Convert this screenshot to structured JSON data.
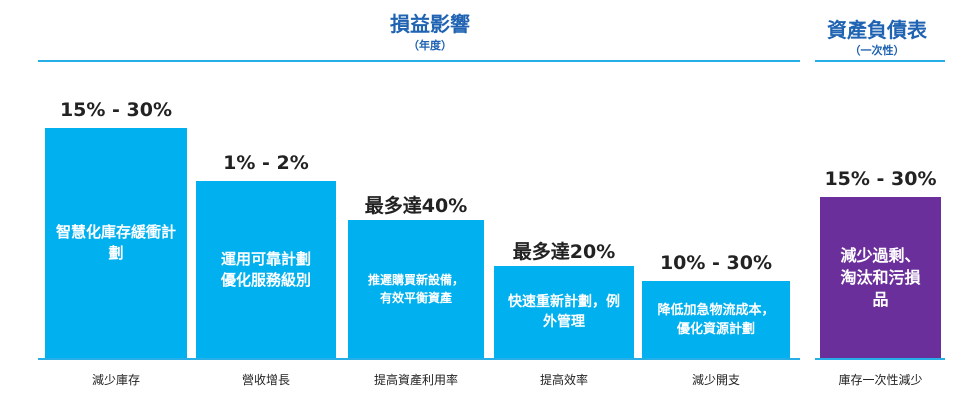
{
  "colors": {
    "impact_bar": "#00b0ef",
    "balance_bar": "#6b2f9b",
    "header": "#1f63b2",
    "rule": "#27aee6"
  },
  "headers": {
    "impact": {
      "title": "損益影響",
      "subtitle": "（年度）"
    },
    "balance": {
      "title": "資產負債表",
      "subtitle": "（一次性）"
    }
  },
  "chart_data": {
    "type": "bar",
    "title": "",
    "xlabel": "",
    "ylabel": "",
    "ylim": [
      0,
      40
    ],
    "legend": "none",
    "grid": false,
    "series": [
      {
        "name": "損益影響（年度）",
        "categories": [
          "減少庫存",
          "營收增長",
          "提高資產利用率",
          "提高效率",
          "減少開支"
        ],
        "bar_text": [
          "智慧化庫存緩衝計劃",
          "運用可靠計劃\n優化服務級別",
          "推遲購買新設備，\n有效平衡資產",
          "快速重新計劃，例\n外管理",
          "降低加急物流成本，\n優化資源計劃"
        ],
        "value_labels": [
          "15% - 30%",
          "1% - 2%",
          "最多達40%",
          "最多達20%",
          "10% - 30%"
        ],
        "values": [
          30,
          23,
          18,
          12,
          10
        ]
      },
      {
        "name": "資產負債表（一次性）",
        "categories": [
          "庫存一次性減少"
        ],
        "bar_text": [
          "減少過剩、\n淘汰和污損\n品"
        ],
        "value_labels": [
          "15% - 30%"
        ],
        "values": [
          21
        ]
      }
    ]
  }
}
